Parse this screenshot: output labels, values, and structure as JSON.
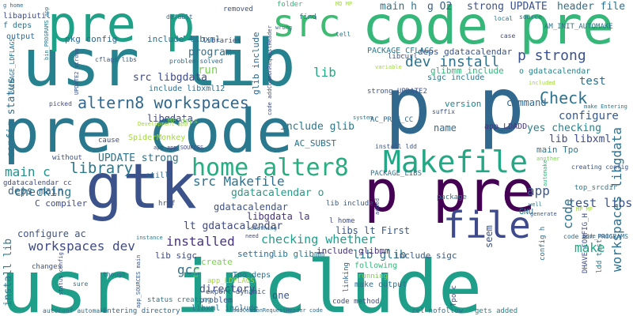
{
  "words": [
    {
      "text": "usr include",
      "color": "#1f9e89"
    },
    {
      "text": "usr lib",
      "color": "#26828e"
    },
    {
      "text": "pre code",
      "color": "#2a788e"
    },
    {
      "text": "code pre",
      "color": "#35b779"
    },
    {
      "text": "p p",
      "color": "#31688e"
    },
    {
      "text": "pre p",
      "color": "#1fa187"
    },
    {
      "text": "gtk",
      "color": "#3b528b"
    },
    {
      "text": "p pre",
      "color": "#440154"
    },
    {
      "text": "Makefile",
      "color": "#22a884"
    },
    {
      "text": "src",
      "color": "#3fbc73"
    },
    {
      "text": "file",
      "color": "#3e4a89"
    },
    {
      "text": "home alter8",
      "color": "#27ad81"
    },
    {
      "text": "altern8 workspaces",
      "color": "#31688e"
    },
    {
      "text": "Check",
      "color": "#2c728e"
    },
    {
      "text": "library",
      "color": "#2a788e"
    },
    {
      "text": "src Makefile",
      "color": "#2e6f8e"
    },
    {
      "text": "p strong",
      "color": "#3b528b"
    },
    {
      "text": "dev install",
      "color": "#2c728e"
    },
    {
      "text": "workspaces dev",
      "color": "#3e4a89"
    },
    {
      "text": "make",
      "color": "#22a884"
    },
    {
      "text": "workspaces libgdata",
      "color": "#2d708e"
    },
    {
      "text": "main h",
      "color": "#2a788e"
    },
    {
      "text": "g O2",
      "color": "#33638d"
    },
    {
      "text": "strong UPDATE",
      "color": "#3b528b"
    },
    {
      "text": "header file",
      "color": "#2d708e"
    },
    {
      "text": "test",
      "color": "#2d708e"
    },
    {
      "text": "configure",
      "color": "#38588c"
    },
    {
      "text": "checking",
      "color": "#2a788e"
    },
    {
      "text": "checking whether",
      "color": "#1f9e89"
    },
    {
      "text": "installed",
      "color": "#46337e"
    },
    {
      "text": "gcc",
      "color": "#2d708e"
    },
    {
      "text": "app",
      "color": "#39568c"
    },
    {
      "text": "test libs",
      "color": "#3b528b"
    },
    {
      "text": "deps main",
      "color": "#33638d"
    },
    {
      "text": "main c",
      "color": "#21918c"
    },
    {
      "text": "lt gdatacalendar",
      "color": "#3e4a89"
    },
    {
      "text": "UPDATE strong",
      "color": "#2c728e"
    },
    {
      "text": "gdatacalendar o",
      "color": "#1f9e89"
    },
    {
      "text": "gdatacalendar",
      "color": "#3b528b"
    },
    {
      "text": "libgdata la",
      "color": "#46337e"
    },
    {
      "text": "libs lt First",
      "color": "#38588c"
    },
    {
      "text": "lib glib",
      "color": "#2a788e"
    },
    {
      "text": "lib libxml",
      "color": "#3e4a89"
    },
    {
      "text": "yes checking",
      "color": "#26828e"
    },
    {
      "text": "command",
      "color": "#31688e"
    },
    {
      "text": "include glib",
      "color": "#2a788e"
    },
    {
      "text": "src libgdata",
      "color": "#3e4a89"
    },
    {
      "text": "program",
      "color": "#2c728e"
    },
    {
      "text": "run",
      "color": "#7ad151"
    },
    {
      "text": "directory",
      "color": "#3e4a89"
    },
    {
      "text": "config status",
      "color": "#2d708e"
    },
    {
      "text": "install lib",
      "color": "#2a788e"
    },
    {
      "text": "configure ac",
      "color": "#3b528b"
    },
    {
      "text": "glib include",
      "color": "#31688e"
    },
    {
      "text": "PACKAGE_CFLAGS",
      "color": "#2a788e"
    },
    {
      "text": "deps gdatacalendar",
      "color": "#3b528b"
    },
    {
      "text": "include libxml",
      "color": "#2c728e"
    },
    {
      "text": "include libxml12",
      "color": "#2d708e"
    },
    {
      "text": "libgdata",
      "color": "#3e4a89"
    },
    {
      "text": "code",
      "color": "#2d708e"
    },
    {
      "text": "seem",
      "color": "#3b528b"
    },
    {
      "text": "name",
      "color": "#31688e"
    },
    {
      "text": "version",
      "color": "#26828e"
    },
    {
      "text": "include sigc",
      "color": "#38588c"
    },
    {
      "text": "lib sigc",
      "color": "#3e4a89"
    },
    {
      "text": "lib glibmm",
      "color": "#2a788e"
    },
    {
      "text": "include glibmm",
      "color": "#46337e"
    },
    {
      "text": "create",
      "color": "#7ad151"
    },
    {
      "text": "one",
      "color": "#3b528b"
    },
    {
      "text": "setting",
      "color": "#31688e"
    },
    {
      "text": "main Tpo",
      "color": "#2a788e"
    },
    {
      "text": "C compiler",
      "color": "#3e4a89"
    },
    {
      "text": "glibmm include",
      "color": "#35b779"
    },
    {
      "text": "AC_SUBST",
      "color": "#2d708e"
    },
    {
      "text": "app_LDADD",
      "color": "#46337e"
    },
    {
      "text": "pkg config",
      "color": "#31688e"
    },
    {
      "text": "libapiutil",
      "color": "#3e4a89"
    },
    {
      "text": "f deps",
      "color": "#2c728e"
    },
    {
      "text": "output",
      "color": "#31688e"
    },
    {
      "text": "sigc include",
      "color": "#2a788e"
    },
    {
      "text": "libcurl",
      "color": "#3b528b"
    },
    {
      "text": "o gdatacalendar",
      "color": "#26828e"
    },
    {
      "text": "libraries",
      "color": "#3e4a89"
    },
    {
      "text": "Tpo deps",
      "color": "#2d708e"
    },
    {
      "text": "app_LDFLAGS",
      "color": "#a0da39"
    },
    {
      "text": "problem",
      "color": "#3b528b"
    },
    {
      "text": "lib",
      "color": "#22a884"
    },
    {
      "text": "libxml include",
      "color": "#2d708e"
    },
    {
      "text": "make output",
      "color": "#2d708e"
    },
    {
      "text": "linking",
      "color": "#31688e"
    },
    {
      "text": "gdatacalendar cc",
      "color": "#3e4a89"
    },
    {
      "text": "changes",
      "color": "#3b528b"
    },
    {
      "text": "still",
      "color": "#31688e"
    },
    {
      "text": "SpiderMonkey",
      "color": "#a0da39"
    },
    {
      "text": "MF deps",
      "color": "#7ad151"
    },
    {
      "text": "cause",
      "color": "#3e4a89"
    },
    {
      "text": "without",
      "color": "#3b528b"
    },
    {
      "text": "AM_INIT_AUTOMAKE",
      "color": "#2d708e"
    },
    {
      "text": "strong UPDATE2",
      "color": "#3b528b"
    },
    {
      "text": "AC_PROG_CC",
      "color": "#31688e"
    },
    {
      "text": "lib include",
      "color": "#38588c"
    },
    {
      "text": "l home",
      "color": "#3e4a89"
    },
    {
      "text": "GNU",
      "color": "#2a788e"
    },
    {
      "text": "following",
      "color": "#35b779"
    },
    {
      "text": "running",
      "color": "#7ad151"
    },
    {
      "text": "package",
      "color": "#2c728e"
    },
    {
      "text": "PACKAGE_LIBS",
      "color": "#2d708e"
    },
    {
      "text": "install ldd",
      "color": "#3b528b"
    },
    {
      "text": "export dynamic",
      "color": "#38588c"
    },
    {
      "text": "Entering directory",
      "color": "#31688e"
    },
    {
      "text": "status creating",
      "color": "#2a788e"
    },
    {
      "text": "code method",
      "color": "#3e4a89"
    },
    {
      "text": "rel nofollow",
      "color": "#2c728e"
    },
    {
      "text": "gets added",
      "color": "#26828e"
    },
    {
      "text": "creating config",
      "color": "#3b528b"
    },
    {
      "text": "top_srcdir",
      "color": "#2a788e"
    },
    {
      "text": "code bin_PROGRAMS",
      "color": "#31688e"
    },
    {
      "text": "config h",
      "color": "#2d708e"
    },
    {
      "text": "Tpo c",
      "color": "#3e4a89"
    },
    {
      "text": "ldd test",
      "color": "#2a788e"
    },
    {
      "text": "DHAVE_CONFIG_H",
      "color": "#3e4a89"
    },
    {
      "text": "find",
      "color": "#2d708e"
    },
    {
      "text": "folder",
      "color": "#35b779"
    },
    {
      "text": "removed",
      "color": "#3b528b"
    },
    {
      "text": "default",
      "color": "#31688e"
    },
    {
      "text": "local",
      "color": "#2a788e"
    },
    {
      "text": "source",
      "color": "#2c728e"
    },
    {
      "text": "case",
      "color": "#3e4a89"
    },
    {
      "text": "cflags libs",
      "color": "#38588c"
    },
    {
      "text": "problem solved",
      "color": "#31688e"
    },
    {
      "text": "picked",
      "color": "#3e4a89"
    },
    {
      "text": "UPDATE2 strong",
      "color": "#3b528b"
    },
    {
      "text": "bin_PROGRAMS app",
      "color": "#2a788e"
    },
    {
      "text": "PACKAGE_LDFLAGS",
      "color": "#2d708e"
    },
    {
      "text": "g home",
      "color": "#31688e"
    },
    {
      "text": "MD MP",
      "color": "#a0da39"
    },
    {
      "text": "make Entering",
      "color": "#2c728e"
    },
    {
      "text": "included",
      "color": "#a0da39"
    },
    {
      "text": "code addCommonRequestHeader",
      "color": "#3e4a89"
    },
    {
      "text": "wrong",
      "color": "#31688e"
    },
    {
      "text": "tell",
      "color": "#2a788e"
    },
    {
      "text": "suffix",
      "color": "#3b528b"
    },
    {
      "text": "system",
      "color": "#2a788e"
    },
    {
      "text": "another",
      "color": "#7ad151"
    },
    {
      "text": "automake",
      "color": "#35b779"
    },
    {
      "text": "variable",
      "color": "#a0da39"
    },
    {
      "text": "something",
      "color": "#31688e"
    },
    {
      "text": "Development app",
      "color": "#a0da39"
    },
    {
      "text": "app app_SOURCES",
      "color": "#3e4a89"
    },
    {
      "text": "href",
      "color": "#3b528b"
    },
    {
      "text": "instance",
      "color": "#2a788e"
    },
    {
      "text": "though",
      "color": "#31688e"
    },
    {
      "text": "sure",
      "color": "#2c728e"
    },
    {
      "text": "status config",
      "color": "#3e4a89"
    },
    {
      "text": "app_SOURCES main",
      "color": "#38588c"
    },
    {
      "text": "autoconf automake",
      "color": "#2d708e"
    },
    {
      "text": "need",
      "color": "#3e4a89"
    },
    {
      "text": "try",
      "color": "#7ad151"
    },
    {
      "text": "addCommonRequestHeader code",
      "color": "#31688e"
    },
    {
      "text": "MP MF",
      "color": "#a0da39"
    },
    {
      "text": "added",
      "color": "#3e4a89"
    },
    {
      "text": "code main",
      "color": "#31688e"
    },
    {
      "text": "well",
      "color": "#2a788e"
    },
    {
      "text": "generate",
      "color": "#3b528b"
    }
  ]
}
